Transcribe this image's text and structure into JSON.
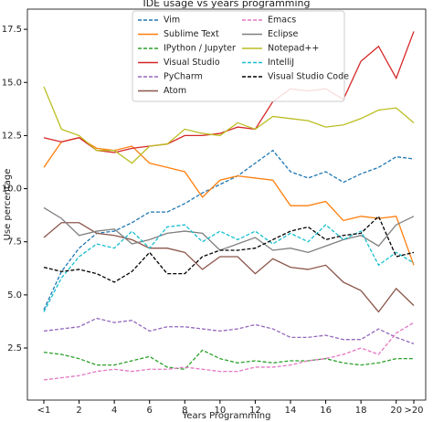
{
  "chart_data": {
    "type": "line",
    "title": "IDE usage vs years programming",
    "x_label": "Years Programming",
    "y_label": "Use percentage",
    "categories": [
      "<1",
      null,
      "2",
      null,
      "4",
      null,
      "6",
      null,
      "8",
      null,
      "10",
      null,
      "12",
      null,
      "14",
      null,
      "16",
      null,
      "18",
      null,
      "20",
      ">20"
    ],
    "ylim": [
      0.05,
      18.45
    ],
    "yticks": [
      {
        "value": 2.5,
        "label": "2.5"
      },
      {
        "value": 5,
        "label": "5.0"
      },
      {
        "value": 7.5,
        "label": "7.5"
      },
      {
        "value": 10,
        "label": "10.0"
      },
      {
        "value": 12.5,
        "label": "12.5"
      },
      {
        "value": 15,
        "label": "15.0"
      },
      {
        "value": 17.5,
        "label": "17.5"
      }
    ],
    "legend": "upper center",
    "series": [
      {
        "name": "Vim",
        "color": "#1f77b4",
        "dashed": true,
        "values": [
          4.3,
          6.1,
          7.2,
          7.9,
          8.0,
          8.4,
          8.9,
          8.9,
          9.3,
          9.8,
          10.2,
          10.6,
          11.2,
          11.8,
          10.8,
          10.5,
          10.8,
          10.3,
          10.7,
          11.0,
          11.5,
          11.4
        ]
      },
      {
        "name": "Sublime Text",
        "color": "#ff7f0e",
        "dashed": false,
        "values": [
          11.0,
          12.2,
          12.4,
          11.9,
          11.8,
          12.0,
          11.2,
          11.0,
          10.8,
          9.6,
          10.4,
          10.6,
          10.5,
          10.4,
          9.2,
          9.2,
          9.4,
          8.5,
          8.7,
          8.6,
          8.7,
          6.4
        ]
      },
      {
        "name": "IPython / Jupyter",
        "color": "#2ca02c",
        "dashed": true,
        "values": [
          2.3,
          2.2,
          2.0,
          1.7,
          1.7,
          1.9,
          2.1,
          1.6,
          1.5,
          2.4,
          2.0,
          1.8,
          1.9,
          1.8,
          1.9,
          1.9,
          2.0,
          1.8,
          1.7,
          1.8,
          2.0,
          2.0
        ]
      },
      {
        "name": "Visual Studio",
        "color": "#d62728",
        "dashed": false,
        "values": [
          12.4,
          12.2,
          12.4,
          11.8,
          11.7,
          11.9,
          12.0,
          12.1,
          12.5,
          12.5,
          12.6,
          12.9,
          12.8,
          14.1,
          14.7,
          14.6,
          14.7,
          14.2,
          16.0,
          16.7,
          15.2,
          17.4
        ]
      },
      {
        "name": "PyCharm",
        "color": "#9467bd",
        "dashed": true,
        "values": [
          3.3,
          3.4,
          3.5,
          3.9,
          3.7,
          3.8,
          3.3,
          3.5,
          3.5,
          3.4,
          3.3,
          3.4,
          3.6,
          3.4,
          3.0,
          3.0,
          3.1,
          2.9,
          2.9,
          3.4,
          3.0,
          2.7
        ]
      },
      {
        "name": "Atom",
        "color": "#8c564b",
        "dashed": false,
        "values": [
          7.7,
          8.4,
          8.4,
          7.9,
          7.8,
          7.6,
          7.2,
          7.2,
          7.0,
          6.2,
          6.8,
          6.8,
          6.0,
          6.7,
          6.3,
          6.2,
          6.4,
          5.6,
          5.2,
          4.2,
          5.3,
          4.5
        ]
      },
      {
        "name": "Emacs",
        "color": "#e377c2",
        "dashed": true,
        "values": [
          1.0,
          1.1,
          1.2,
          1.4,
          1.5,
          1.4,
          1.5,
          1.5,
          1.6,
          1.5,
          1.4,
          1.4,
          1.6,
          1.6,
          1.7,
          1.9,
          2.0,
          2.2,
          2.5,
          2.2,
          3.2,
          3.7
        ]
      },
      {
        "name": "Eclipse",
        "color": "#7f7f7f",
        "dashed": false,
        "values": [
          9.1,
          8.6,
          7.8,
          8.0,
          8.1,
          7.4,
          7.6,
          7.9,
          8.0,
          7.9,
          7.1,
          7.4,
          7.7,
          7.1,
          7.2,
          7.0,
          7.3,
          7.6,
          7.8,
          7.3,
          8.3,
          8.7
        ]
      },
      {
        "name": "Notepad++",
        "color": "#bcbd22",
        "dashed": false,
        "values": [
          14.8,
          12.8,
          12.5,
          11.8,
          11.8,
          11.2,
          12.0,
          12.1,
          12.8,
          12.6,
          12.5,
          13.1,
          12.8,
          13.4,
          13.3,
          13.2,
          12.9,
          13.0,
          13.3,
          13.7,
          13.8,
          13.1
        ]
      },
      {
        "name": "IntelliJ",
        "color": "#17becf",
        "dashed": true,
        "values": [
          4.2,
          5.8,
          6.8,
          7.4,
          7.2,
          8.0,
          7.2,
          8.2,
          8.3,
          7.5,
          8.0,
          7.6,
          8.0,
          7.4,
          7.9,
          7.5,
          8.3,
          7.6,
          8.0,
          6.4,
          7.0,
          6.5
        ]
      },
      {
        "name": "Visual Studio Code",
        "color": "#000000",
        "dashed": true,
        "values": [
          6.3,
          6.1,
          6.2,
          6.0,
          5.6,
          6.1,
          7.0,
          6.0,
          6.0,
          6.8,
          7.1,
          7.1,
          7.2,
          7.6,
          8.0,
          8.2,
          7.6,
          7.8,
          7.9,
          8.7,
          6.8,
          7.0
        ]
      }
    ]
  }
}
